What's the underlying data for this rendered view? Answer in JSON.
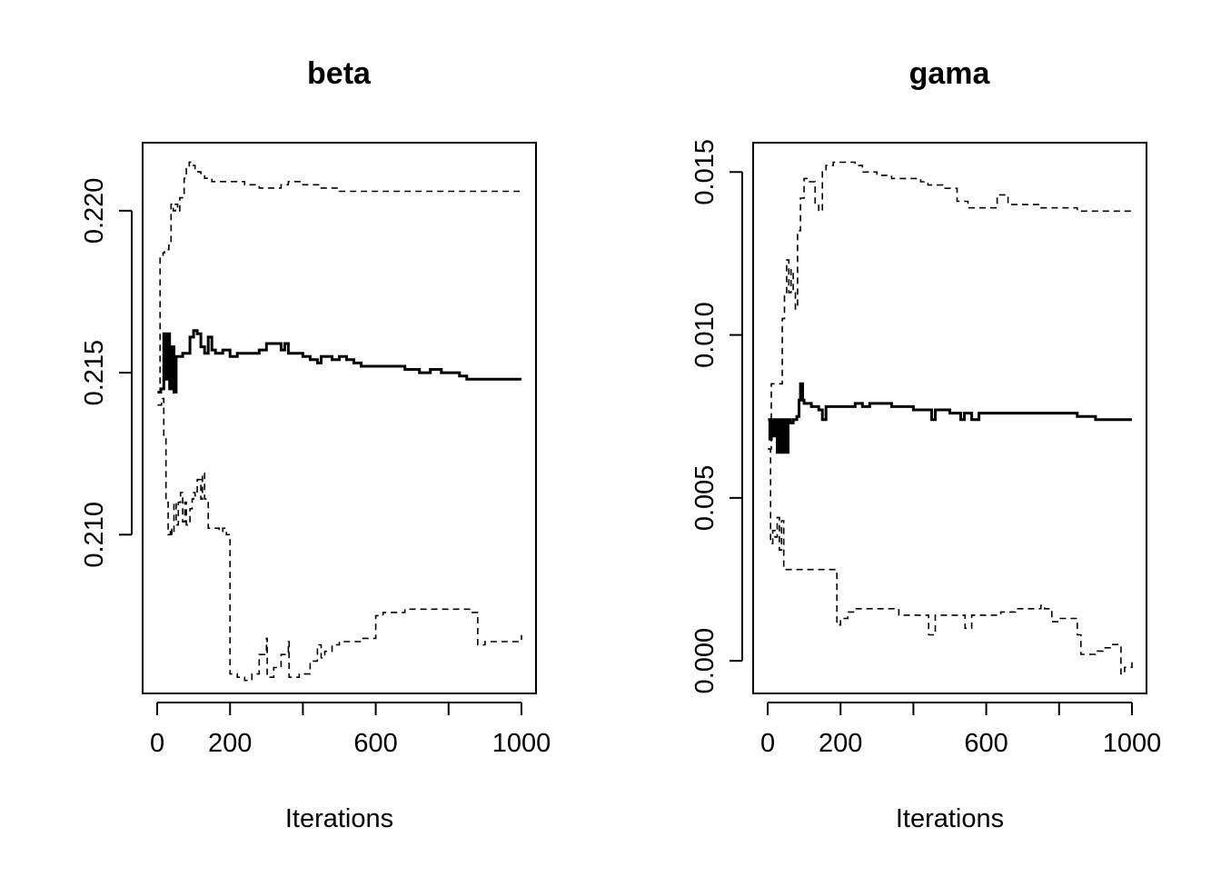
{
  "chart_data": [
    {
      "type": "line",
      "title": "beta",
      "xlabel": "Iterations",
      "ylabel": "",
      "xlim": [
        -40,
        1040
      ],
      "ylim": [
        0.2051,
        0.2221
      ],
      "xticks": [
        0,
        200,
        400,
        600,
        800,
        1000
      ],
      "xtick_labels": [
        "0",
        "200",
        "",
        "600",
        "",
        "1000"
      ],
      "yticks": [
        0.21,
        0.215,
        0.22
      ],
      "ytick_labels": [
        "0.210",
        "0.215",
        "0.220"
      ],
      "grid": false,
      "legend": "none",
      "series": [
        {
          "style": "solid",
          "x": [
            1,
            10,
            18,
            22,
            28,
            34,
            40,
            46,
            52,
            58,
            70,
            80,
            90,
            100,
            110,
            120,
            130,
            140,
            150,
            160,
            170,
            180,
            200,
            220,
            240,
            260,
            280,
            300,
            320,
            340,
            350,
            360,
            380,
            400,
            420,
            440,
            450,
            460,
            480,
            500,
            520,
            540,
            560,
            600,
            620,
            650,
            680,
            700,
            720,
            750,
            780,
            800,
            830,
            850,
            880,
            920,
            950,
            1000
          ],
          "y": [
            0.2144,
            0.2145,
            0.2162,
            0.2148,
            0.2162,
            0.2145,
            0.2158,
            0.2144,
            0.2155,
            0.2155,
            0.2156,
            0.2156,
            0.2161,
            0.2163,
            0.2162,
            0.2158,
            0.2156,
            0.2161,
            0.2157,
            0.2156,
            0.2156,
            0.2157,
            0.2155,
            0.2156,
            0.2156,
            0.2156,
            0.2157,
            0.2159,
            0.2159,
            0.2157,
            0.2159,
            0.2156,
            0.2156,
            0.2155,
            0.2154,
            0.2153,
            0.2155,
            0.2155,
            0.2154,
            0.2155,
            0.2154,
            0.2153,
            0.2152,
            0.2152,
            0.2152,
            0.2152,
            0.2151,
            0.2151,
            0.215,
            0.2151,
            0.215,
            0.215,
            0.2149,
            0.2148,
            0.2148,
            0.2148,
            0.2148,
            0.2148
          ]
        },
        {
          "style": "dashed",
          "x": [
            1,
            8,
            12,
            16,
            20,
            26,
            32,
            38,
            44,
            50,
            56,
            62,
            68,
            74,
            80,
            88,
            96,
            104,
            112,
            120,
            130,
            140,
            150,
            160,
            180,
            200,
            240,
            280,
            300,
            320,
            340,
            360,
            380,
            400,
            450,
            500,
            550,
            600,
            650,
            700,
            750,
            800,
            850,
            900,
            950,
            1000
          ],
          "y": [
            0.2144,
            0.2186,
            0.2186,
            0.2187,
            0.2188,
            0.2188,
            0.219,
            0.2202,
            0.22,
            0.2202,
            0.22,
            0.2204,
            0.2204,
            0.221,
            0.2213,
            0.2215,
            0.2214,
            0.2213,
            0.2212,
            0.2211,
            0.221,
            0.221,
            0.2209,
            0.2209,
            0.2209,
            0.2209,
            0.2208,
            0.2207,
            0.2207,
            0.2207,
            0.2208,
            0.2209,
            0.2209,
            0.2208,
            0.2207,
            0.2206,
            0.2206,
            0.2206,
            0.2206,
            0.2206,
            0.2206,
            0.2206,
            0.2206,
            0.2206,
            0.2206,
            0.2206
          ]
        },
        {
          "style": "dashed",
          "x": [
            1,
            12,
            18,
            24,
            30,
            36,
            40,
            46,
            52,
            58,
            64,
            70,
            76,
            80,
            90,
            96,
            100,
            104,
            110,
            120,
            124,
            130,
            140,
            150,
            160,
            170,
            180,
            190,
            200,
            220,
            240,
            260,
            280,
            300,
            302,
            320,
            340,
            360,
            362,
            390,
            400,
            420,
            440,
            450,
            460,
            480,
            500,
            530,
            560,
            600,
            620,
            650,
            680,
            700,
            720,
            760,
            790,
            820,
            860,
            880,
            900,
            950,
            1000
          ],
          "y": [
            0.214,
            0.2142,
            0.213,
            0.211,
            0.21,
            0.2102,
            0.21,
            0.211,
            0.2103,
            0.211,
            0.2113,
            0.2104,
            0.211,
            0.2103,
            0.2108,
            0.2111,
            0.2113,
            0.2112,
            0.2117,
            0.2111,
            0.2119,
            0.2111,
            0.2102,
            0.2102,
            0.2102,
            0.2101,
            0.2102,
            0.21,
            0.2057,
            0.2056,
            0.2055,
            0.2057,
            0.2063,
            0.2068,
            0.2056,
            0.2059,
            0.2063,
            0.2067,
            0.2056,
            0.2057,
            0.2057,
            0.2061,
            0.2066,
            0.2062,
            0.2064,
            0.2066,
            0.2067,
            0.2067,
            0.2068,
            0.2075,
            0.2076,
            0.2076,
            0.2077,
            0.2077,
            0.2077,
            0.2077,
            0.2077,
            0.2077,
            0.2076,
            0.2066,
            0.2067,
            0.2067,
            0.2069
          ]
        }
      ]
    },
    {
      "type": "line",
      "title": "gama",
      "xlabel": "Iterations",
      "ylabel": "",
      "xlim": [
        -40,
        1040
      ],
      "ylim": [
        -0.001,
        0.0159
      ],
      "xticks": [
        0,
        200,
        400,
        600,
        800,
        1000
      ],
      "xtick_labels": [
        "0",
        "200",
        "",
        "600",
        "",
        "1000"
      ],
      "yticks": [
        0.0,
        0.005,
        0.01,
        0.015
      ],
      "ytick_labels": [
        "0.000",
        "0.005",
        "0.010",
        "0.015"
      ],
      "grid": false,
      "legend": "none",
      "series": [
        {
          "style": "solid",
          "x": [
            1,
            6,
            10,
            14,
            20,
            26,
            32,
            38,
            44,
            50,
            56,
            62,
            70,
            80,
            86,
            90,
            96,
            100,
            120,
            140,
            150,
            160,
            180,
            200,
            220,
            240,
            260,
            280,
            300,
            320,
            340,
            360,
            380,
            400,
            420,
            440,
            450,
            460,
            480,
            500,
            520,
            530,
            540,
            560,
            580,
            600,
            650,
            700,
            750,
            800,
            850,
            900,
            950,
            1000
          ],
          "y": [
            0.0074,
            0.0068,
            0.0074,
            0.0069,
            0.0074,
            0.0064,
            0.0074,
            0.0064,
            0.0074,
            0.0064,
            0.0074,
            0.0073,
            0.0074,
            0.0075,
            0.008,
            0.0085,
            0.008,
            0.0079,
            0.0078,
            0.0077,
            0.0074,
            0.0078,
            0.0078,
            0.0078,
            0.0078,
            0.0079,
            0.0078,
            0.0079,
            0.0079,
            0.0079,
            0.0078,
            0.0078,
            0.0078,
            0.0077,
            0.0077,
            0.0077,
            0.0074,
            0.0077,
            0.0077,
            0.0076,
            0.0076,
            0.0074,
            0.0076,
            0.0074,
            0.0076,
            0.0076,
            0.0076,
            0.0076,
            0.0076,
            0.0076,
            0.0075,
            0.0074,
            0.0074,
            0.0074
          ]
        },
        {
          "style": "dashed",
          "x": [
            1,
            10,
            20,
            30,
            40,
            46,
            52,
            58,
            64,
            70,
            76,
            82,
            90,
            100,
            110,
            120,
            130,
            140,
            150,
            160,
            180,
            200,
            220,
            240,
            260,
            300,
            340,
            380,
            400,
            420,
            440,
            460,
            480,
            500,
            520,
            550,
            600,
            620,
            630,
            660,
            700,
            750,
            800,
            850,
            900,
            950,
            1000
          ],
          "y": [
            0.0065,
            0.0085,
            0.0085,
            0.0085,
            0.0105,
            0.0112,
            0.0123,
            0.0113,
            0.012,
            0.0113,
            0.0108,
            0.0132,
            0.0142,
            0.0148,
            0.0147,
            0.0147,
            0.014,
            0.0138,
            0.015,
            0.0152,
            0.0153,
            0.0153,
            0.0153,
            0.0152,
            0.015,
            0.0149,
            0.0148,
            0.0148,
            0.0148,
            0.0147,
            0.0146,
            0.0146,
            0.0145,
            0.0145,
            0.0141,
            0.0139,
            0.0139,
            0.0139,
            0.0143,
            0.014,
            0.014,
            0.0139,
            0.0139,
            0.0138,
            0.0138,
            0.0138,
            0.0138
          ]
        },
        {
          "style": "dashed",
          "x": [
            1,
            8,
            14,
            20,
            26,
            32,
            38,
            44,
            50,
            60,
            100,
            140,
            170,
            180,
            190,
            200,
            220,
            240,
            260,
            300,
            340,
            360,
            380,
            400,
            420,
            440,
            442,
            460,
            480,
            500,
            520,
            540,
            542,
            560,
            600,
            640,
            680,
            720,
            750,
            760,
            780,
            800,
            830,
            840,
            850,
            860,
            880,
            900,
            920,
            940,
            950,
            960,
            970,
            980,
            990,
            1000
          ],
          "y": [
            0.0065,
            0.0036,
            0.004,
            0.0038,
            0.0044,
            0.0034,
            0.0043,
            0.0028,
            0.0028,
            0.0028,
            0.0028,
            0.0028,
            0.0028,
            0.0028,
            0.0011,
            0.0013,
            0.0015,
            0.0016,
            0.0016,
            0.0016,
            0.0016,
            0.0014,
            0.0014,
            0.0014,
            0.0014,
            0.0014,
            0.0008,
            0.0014,
            0.0014,
            0.0014,
            0.0014,
            0.0014,
            0.001,
            0.0014,
            0.0014,
            0.0015,
            0.0016,
            0.0016,
            0.0017,
            0.0016,
            0.0012,
            0.0013,
            0.0013,
            0.0013,
            0.0008,
            0.0002,
            0.0002,
            0.0003,
            0.0004,
            0.0005,
            0.0005,
            0.0005,
            -0.0004,
            -0.0002,
            -0.0002,
            0.0
          ]
        }
      ]
    }
  ]
}
